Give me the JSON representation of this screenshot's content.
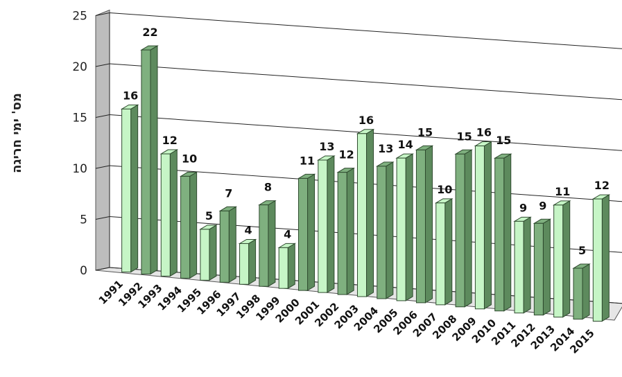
{
  "chart_data": {
    "type": "bar",
    "ylabel": "מס' ימי חריגה",
    "ylim": [
      0,
      25
    ],
    "yticks": [
      "0",
      "5",
      "10",
      "15",
      "20",
      "25"
    ],
    "grid": true,
    "categories": [
      "1991",
      "1992",
      "1993",
      "1994",
      "1995",
      "1996",
      "1997",
      "1998",
      "1999",
      "2000",
      "2001",
      "2002",
      "2003",
      "2004",
      "2005",
      "2006",
      "2007",
      "2008",
      "2009",
      "2010",
      "2011",
      "2012",
      "2013",
      "2014",
      "2015"
    ],
    "values": [
      16,
      22,
      12,
      10,
      5,
      7,
      4,
      8,
      4,
      11,
      13,
      12,
      16,
      13,
      14,
      15,
      10,
      15,
      16,
      15,
      9,
      9,
      11,
      5,
      12
    ],
    "data_labels": [
      "16",
      "22",
      "12",
      "10",
      "5",
      "7",
      "4",
      "8",
      "4",
      "11",
      "13",
      "12",
      "16",
      "13",
      "14",
      "15",
      "10",
      "15",
      "16",
      "15",
      "9",
      "9",
      "11",
      "5",
      "12"
    ],
    "colors": {
      "odd": "#c6f5c6",
      "even": "#7fb07f",
      "edge": "#2e4a2e",
      "wall": "#bdbdbd"
    }
  }
}
